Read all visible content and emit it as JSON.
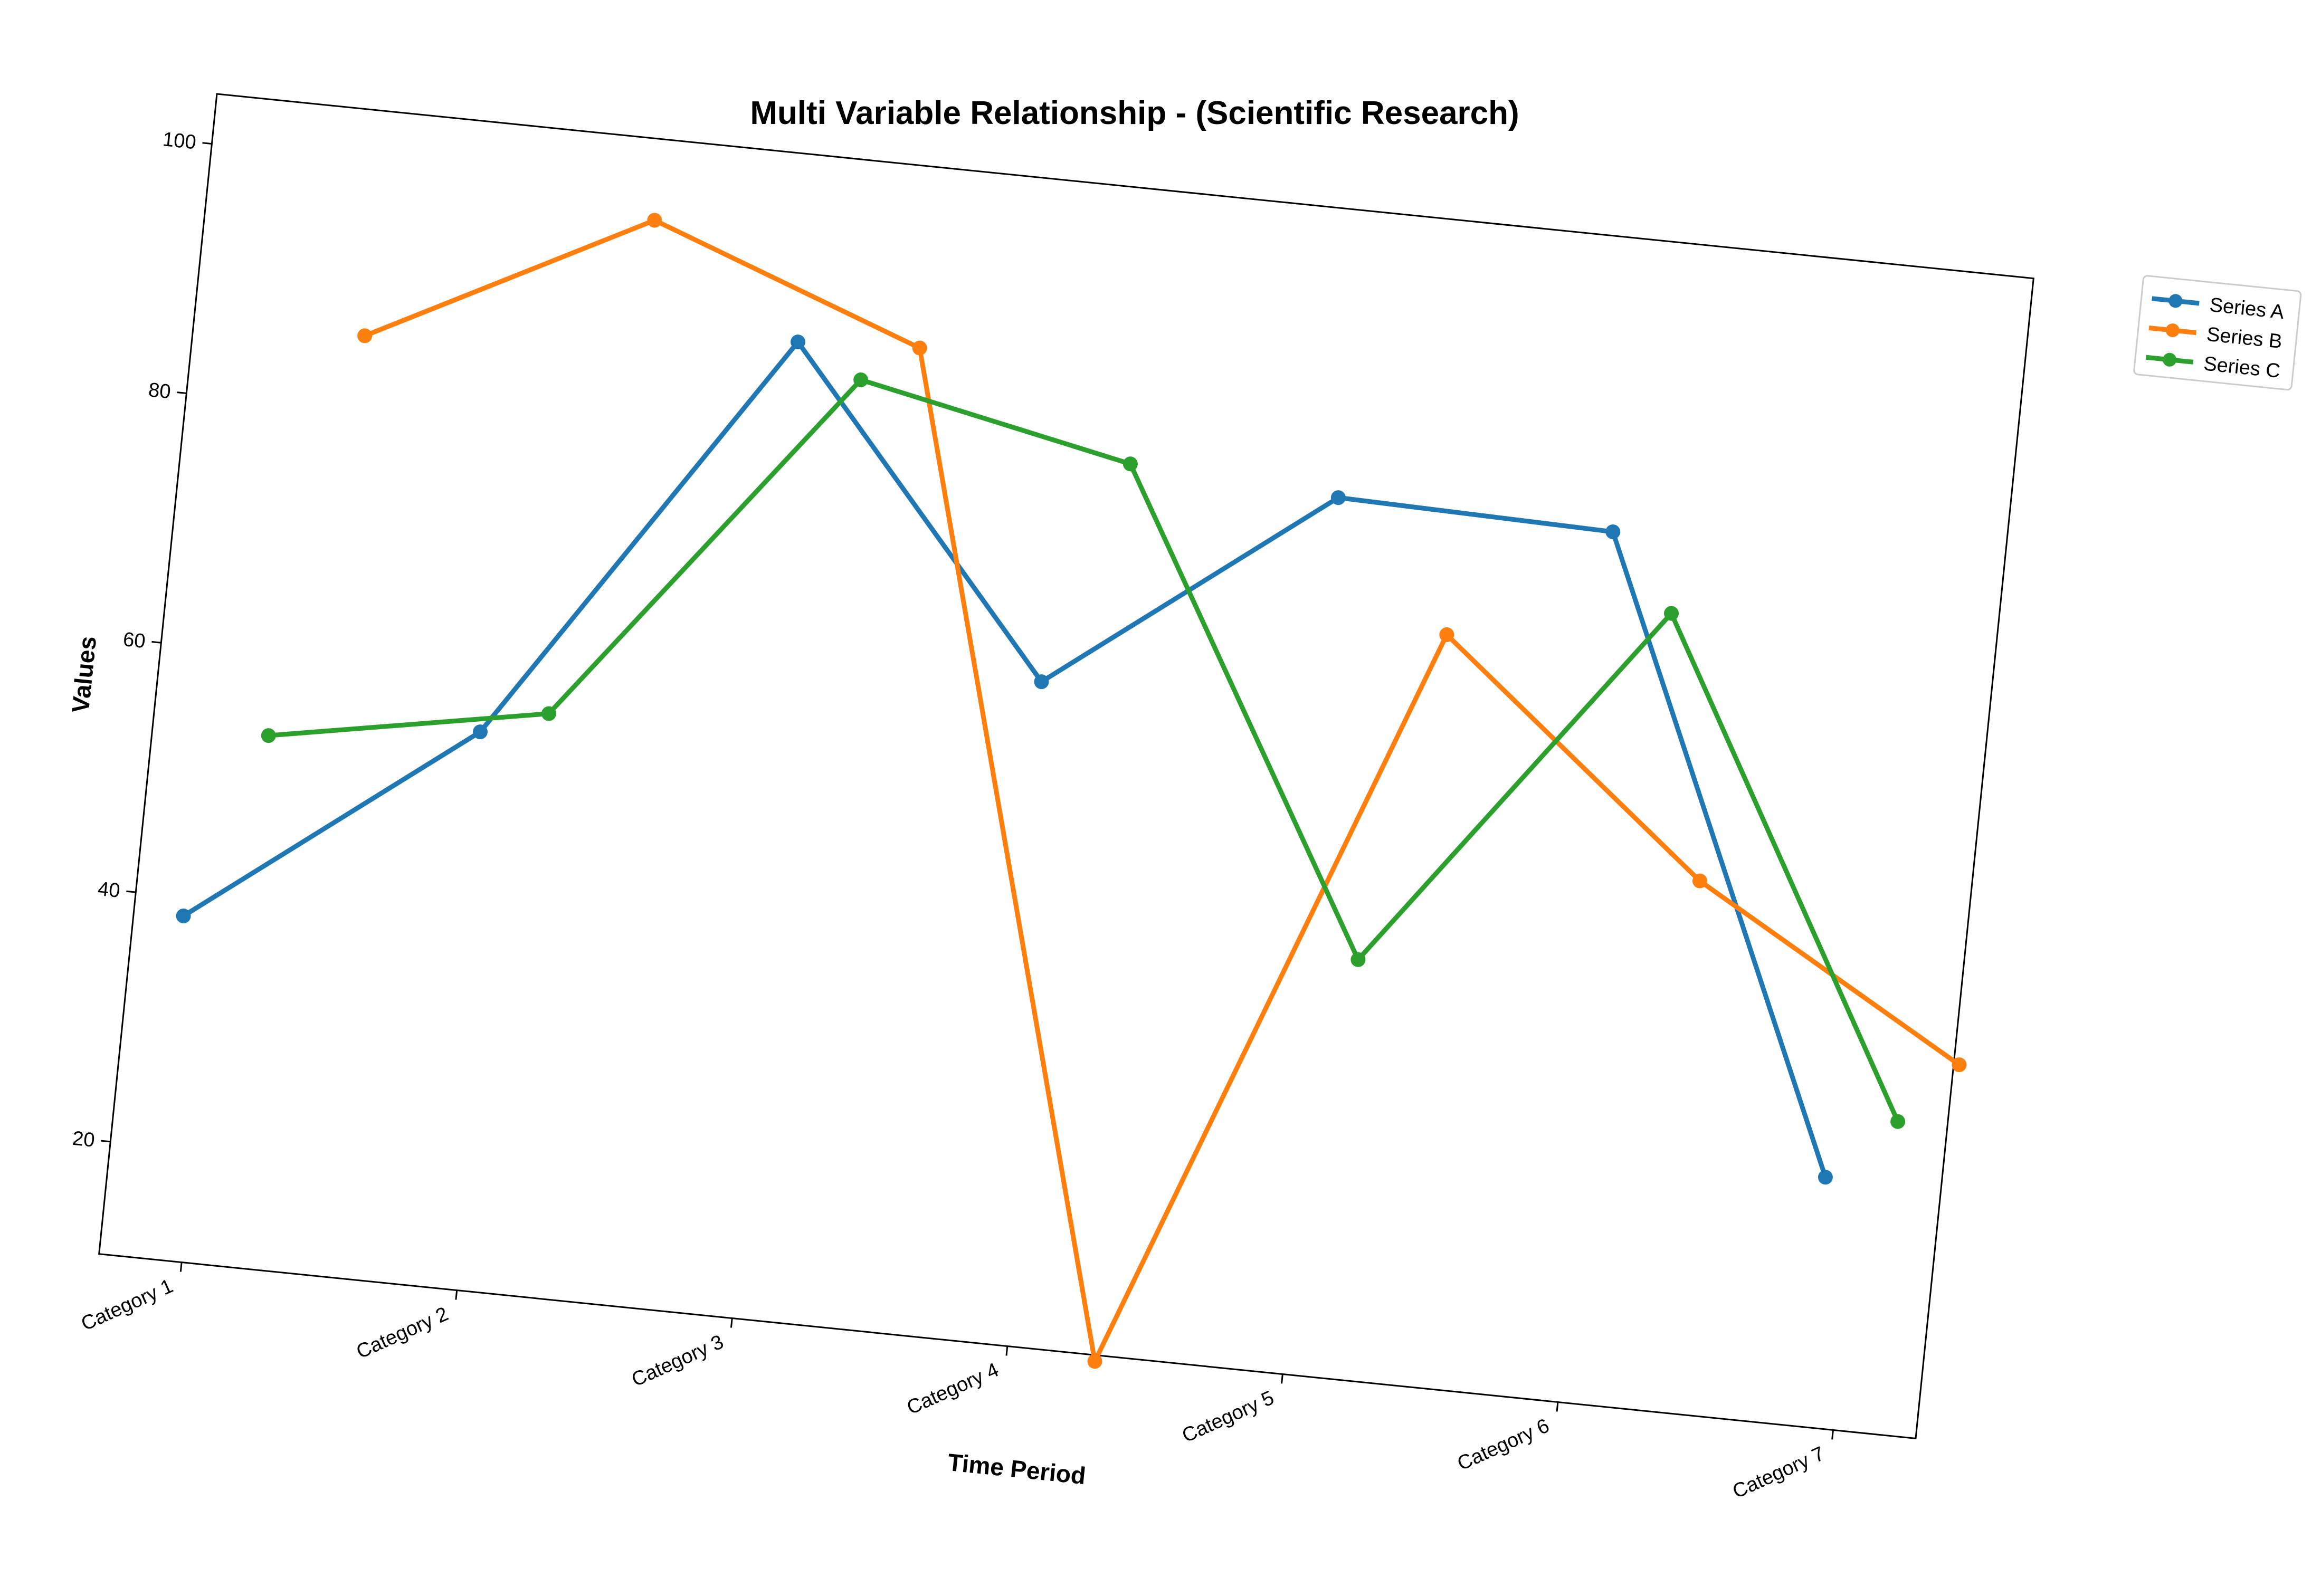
{
  "chart_data": {
    "type": "line",
    "title": "Multi Variable Relationship - (Scientific Research)",
    "xlabel": "Time Period",
    "ylabel": "Values",
    "categories": [
      "Category 1",
      "Category 2",
      "Category 3",
      "Category 4",
      "Category 5",
      "Category 6",
      "Category 7"
    ],
    "yticks": [
      20,
      40,
      60,
      80,
      100
    ],
    "ylim": [
      11,
      104
    ],
    "grid": false,
    "legend_position": "outside-top-right",
    "series": [
      {
        "name": "Series A",
        "color": "#1f77b4",
        "x_offset": -0.12,
        "values": [
          38.5,
          55.5,
          89,
          64,
          81,
          80.5,
          31
        ]
      },
      {
        "name": "Series B",
        "color": "#ff7f0e",
        "x_offset": 0.32,
        "values": [
          86,
          97.5,
          89.5,
          10.5,
          71,
          53.5,
          41
        ]
      },
      {
        "name": "Series C",
        "color": "#2ca02c",
        "x_offset": 0.12,
        "values": [
          53.5,
          57.5,
          86.5,
          82,
          44.5,
          74.5,
          36
        ]
      }
    ]
  }
}
